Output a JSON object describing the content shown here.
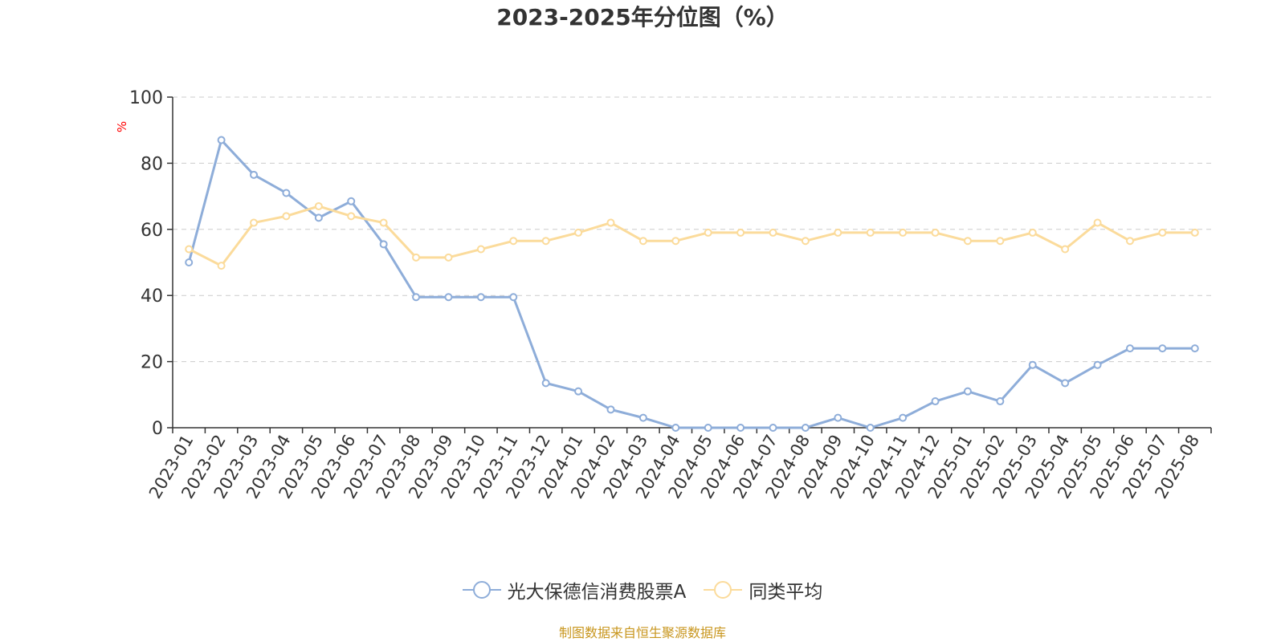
{
  "chart_data": {
    "type": "line",
    "title": "2023-2025年分位图（%）",
    "ylabel": "%",
    "xlabel": "",
    "ylim": [
      0,
      100
    ],
    "yticks": [
      0,
      20,
      40,
      60,
      80,
      100
    ],
    "grid": "horizontal-dashed",
    "legend_position": "bottom",
    "categories": [
      "2023-01",
      "2023-02",
      "2023-03",
      "2023-04",
      "2023-05",
      "2023-06",
      "2023-07",
      "2023-08",
      "2023-09",
      "2023-10",
      "2023-11",
      "2023-12",
      "2024-01",
      "2024-02",
      "2024-03",
      "2024-04",
      "2024-05",
      "2024-06",
      "2024-07",
      "2024-08",
      "2024-09",
      "2024-10",
      "2024-11",
      "2024-12",
      "2025-01",
      "2025-02",
      "2025-03",
      "2025-04",
      "2025-05",
      "2025-06",
      "2025-07",
      "2025-08"
    ],
    "series": [
      {
        "name": "光大保德信消费股票A",
        "color": "#8eadd9",
        "values": [
          50,
          87,
          76.5,
          71,
          63.5,
          68.5,
          55.5,
          39.5,
          39.5,
          39.5,
          39.5,
          13.5,
          11,
          5.5,
          3,
          0,
          0,
          0,
          0,
          0,
          3,
          0,
          3,
          8,
          11,
          8,
          19,
          13.5,
          19,
          24,
          24,
          24
        ]
      },
      {
        "name": "同类平均",
        "color": "#fbdb9b",
        "values": [
          54,
          49,
          62,
          64,
          67,
          64,
          62,
          51.5,
          51.5,
          54,
          56.5,
          56.5,
          59,
          62,
          56.5,
          56.5,
          59,
          59,
          59,
          56.5,
          59,
          59,
          59,
          59,
          56.5,
          56.5,
          59,
          54,
          62,
          56.5,
          59,
          59
        ]
      }
    ]
  },
  "source_note": "制图数据来自恒生聚源数据库",
  "colors": {
    "axis": "#333333",
    "grid": "#cccccc",
    "ylabel": "#ff0000",
    "title": "#333333",
    "source": "#c8961e"
  }
}
